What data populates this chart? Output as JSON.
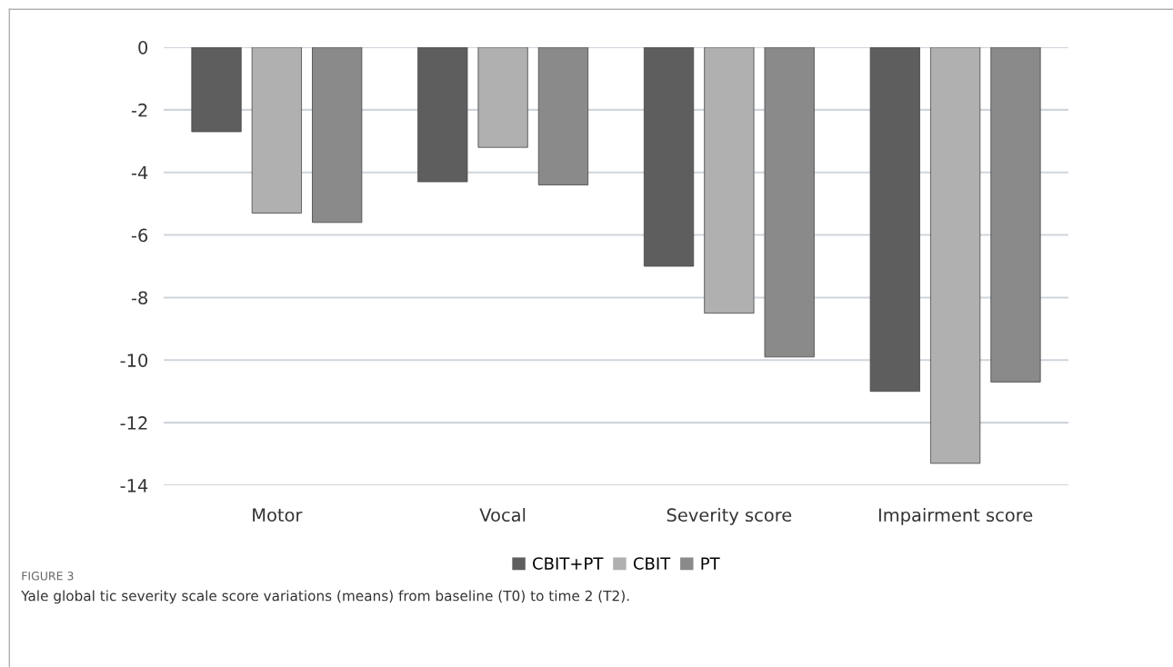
{
  "chart_data": {
    "type": "bar",
    "categories": [
      "Motor",
      "Vocal",
      "Severity score",
      "Impairment score"
    ],
    "series": [
      {
        "name": "CBIT+PT",
        "color": "#5e5e5e",
        "values": [
          -2.7,
          -4.3,
          -7.0,
          -11.0
        ]
      },
      {
        "name": "CBIT",
        "color": "#b0b0b0",
        "values": [
          -5.3,
          -3.2,
          -8.5,
          -13.3
        ]
      },
      {
        "name": "PT",
        "color": "#8a8a8a",
        "values": [
          -5.6,
          -4.4,
          -9.9,
          -10.7
        ]
      }
    ],
    "ylim": [
      -14,
      0
    ],
    "yticks": [
      -14,
      -12,
      -10,
      -8,
      -6,
      -4,
      -2,
      0
    ],
    "grid": "y",
    "legend": "bottom",
    "annotations": [
      "FIGURE 3",
      "Yale global tic severity scale score variations (means) from baseline (T0) to time 2 (T2)."
    ]
  }
}
